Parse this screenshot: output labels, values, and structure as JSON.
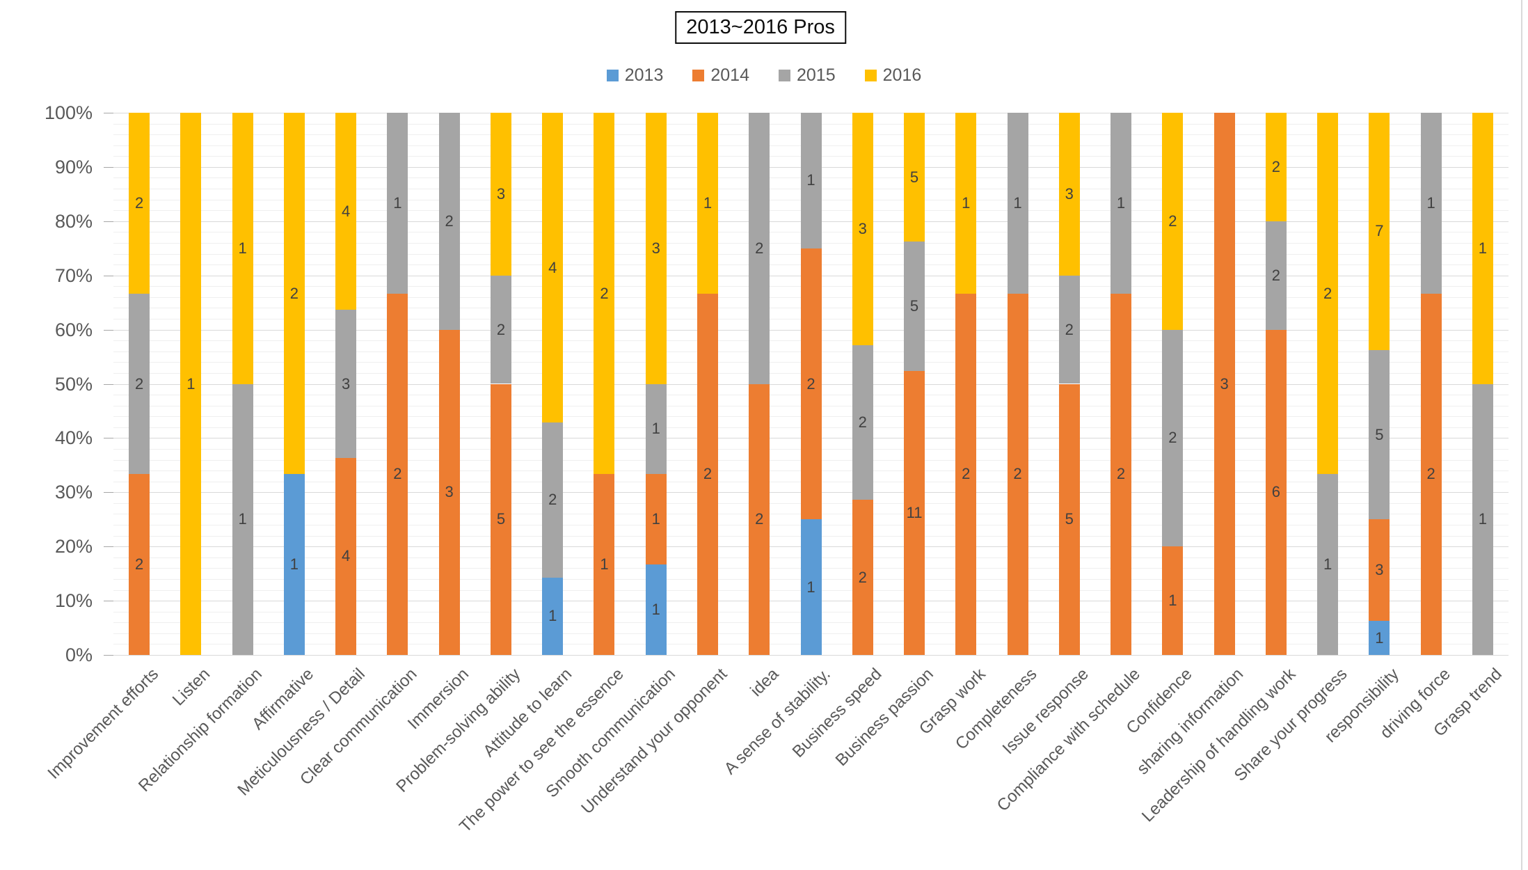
{
  "title": "2013~2016 Pros",
  "legend": [
    {
      "label": "2013",
      "color": "#5B9BD5"
    },
    {
      "label": "2014",
      "color": "#ED7D31"
    },
    {
      "label": "2015",
      "color": "#A5A5A5"
    },
    {
      "label": "2016",
      "color": "#FFC000"
    }
  ],
  "chart_data": {
    "type": "bar",
    "subtype": "stacked-100-percent",
    "title": "2013~2016 Pros",
    "legend_position": "top",
    "grid": "major-and-minor-horizontal",
    "y_axis": {
      "min": 0,
      "max": 100,
      "major_unit_percent": 10,
      "minor_unit_percent": 2,
      "tick_labels": [
        "0%",
        "10%",
        "20%",
        "30%",
        "40%",
        "50%",
        "60%",
        "70%",
        "80%",
        "90%",
        "100%"
      ]
    },
    "categories": [
      "Improvement efforts",
      "Listen",
      "Relationship formation",
      "Affirmative",
      "Meticulousness / Detail",
      "Clear communication",
      "Immersion",
      "Problem-solving ability",
      "Attitude to learn",
      "The power to see the essence",
      "Smooth communication",
      "Understand your opponent",
      "idea",
      "A sense of stability.",
      "Business speed",
      "Business passion",
      "Grasp work",
      "Completeness",
      "Issue response",
      "Compliance with schedule",
      "Confidence",
      "sharing information",
      "Leadership of handling work",
      "Share your progress",
      "responsibility",
      "driving force",
      "Grasp trend"
    ],
    "series": [
      {
        "name": "2013",
        "color": "#5B9BD5",
        "values": [
          0,
          0,
          0,
          1,
          0,
          0,
          0,
          0,
          1,
          0,
          1,
          0,
          0,
          1,
          0,
          0,
          0,
          0,
          0,
          0,
          0,
          0,
          0,
          0,
          1,
          0,
          0
        ]
      },
      {
        "name": "2014",
        "color": "#ED7D31",
        "values": [
          2,
          0,
          0,
          0,
          4,
          2,
          3,
          5,
          0,
          1,
          1,
          2,
          2,
          2,
          2,
          11,
          2,
          2,
          5,
          2,
          1,
          3,
          6,
          0,
          3,
          2,
          0
        ]
      },
      {
        "name": "2015",
        "color": "#A5A5A5",
        "values": [
          2,
          0,
          1,
          0,
          3,
          1,
          2,
          2,
          2,
          0,
          1,
          0,
          2,
          1,
          2,
          5,
          0,
          1,
          2,
          1,
          2,
          0,
          2,
          1,
          5,
          1,
          1
        ]
      },
      {
        "name": "2016",
        "color": "#FFC000",
        "values": [
          2,
          1,
          1,
          2,
          4,
          0,
          0,
          3,
          4,
          2,
          3,
          1,
          0,
          0,
          3,
          5,
          1,
          0,
          3,
          0,
          2,
          0,
          2,
          2,
          7,
          0,
          1
        ]
      }
    ]
  },
  "colors": {
    "major_gridline": "#D9D9D9",
    "minor_gridline": "#EFEFEF",
    "axis_text": "#595959",
    "data_label_text": "#404040",
    "chart_border": "#D9D9D9"
  }
}
